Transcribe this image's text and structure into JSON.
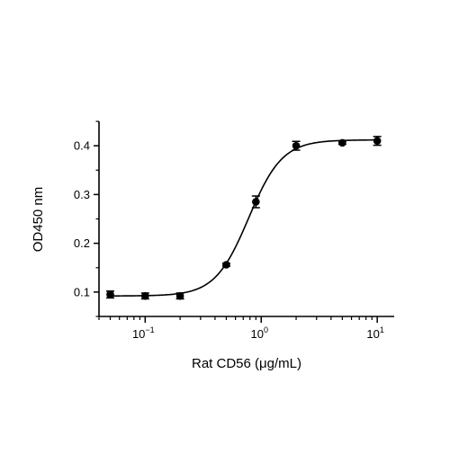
{
  "chart_data": {
    "type": "scatter",
    "title": "",
    "xlabel": "Rat CD56 (μg/mL)",
    "ylabel": "OD450 nm",
    "x_scale": "log10",
    "xlim": [
      0.04,
      14
    ],
    "ylim": [
      0.05,
      0.45
    ],
    "x_ticks": [
      {
        "value": 0.1,
        "base": "10",
        "exp": "−1"
      },
      {
        "value": 1,
        "base": "10",
        "exp": "0"
      },
      {
        "value": 10,
        "base": "10",
        "exp": "1"
      }
    ],
    "y_ticks": [
      {
        "value": 0.1,
        "label": "0.1"
      },
      {
        "value": 0.2,
        "label": "0.2"
      },
      {
        "value": 0.3,
        "label": "0.3"
      },
      {
        "value": 0.4,
        "label": "0.4"
      }
    ],
    "grid": false,
    "legend": "none",
    "series": [
      {
        "points": [
          {
            "x": 0.05,
            "y": 0.095,
            "err": 0.007
          },
          {
            "x": 0.1,
            "y": 0.092,
            "err": 0.006
          },
          {
            "x": 0.2,
            "y": 0.092,
            "err": 0.006
          },
          {
            "x": 0.5,
            "y": 0.156,
            "err": 0.003
          },
          {
            "x": 0.9,
            "y": 0.285,
            "err": 0.012
          },
          {
            "x": 2,
            "y": 0.4,
            "err": 0.009
          },
          {
            "x": 5,
            "y": 0.406,
            "err": 0.003
          },
          {
            "x": 10,
            "y": 0.41,
            "err": 0.009
          }
        ],
        "fit": {
          "model": "4PL",
          "bottom": 0.092,
          "top": 0.412,
          "ec50": 0.78,
          "hill": 3.0
        }
      }
    ],
    "colors": {
      "marks": "#000000",
      "background": "#ffffff"
    }
  }
}
